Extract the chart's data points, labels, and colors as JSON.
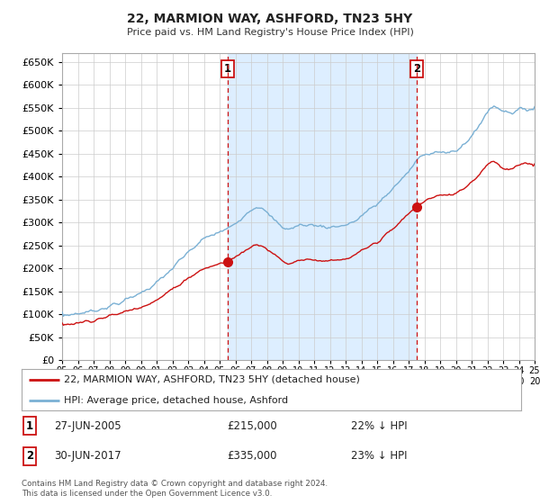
{
  "title": "22, MARMION WAY, ASHFORD, TN23 5HY",
  "subtitle": "Price paid vs. HM Land Registry's House Price Index (HPI)",
  "background_color": "#ffffff",
  "plot_bg_color": "#ffffff",
  "grid_color": "#cccccc",
  "hpi_color": "#7ab0d4",
  "price_color": "#cc1111",
  "shade_color": "#ddeeff",
  "dashed_vline_color": "#cc1111",
  "purchase1": {
    "date_num": 2005.5,
    "price": 215000,
    "label": "1"
  },
  "purchase2": {
    "date_num": 2017.5,
    "price": 335000,
    "label": "2"
  },
  "legend_entries": [
    "22, MARMION WAY, ASHFORD, TN23 5HY (detached house)",
    "HPI: Average price, detached house, Ashford"
  ],
  "annotation1_label": "1",
  "annotation1_date": "27-JUN-2005",
  "annotation1_price": "£215,000",
  "annotation1_hpi": "22% ↓ HPI",
  "annotation2_label": "2",
  "annotation2_date": "30-JUN-2017",
  "annotation2_price": "£335,000",
  "annotation2_hpi": "23% ↓ HPI",
  "footer": "Contains HM Land Registry data © Crown copyright and database right 2024.\nThis data is licensed under the Open Government Licence v3.0.",
  "xmin": 1995,
  "xmax": 2025,
  "ymin": 0,
  "ymax": 650000
}
